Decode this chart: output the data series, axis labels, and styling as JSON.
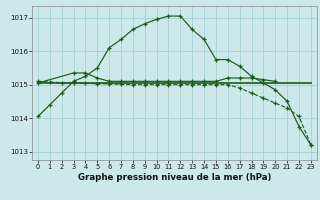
{
  "title": "Graphe pression niveau de la mer (hPa)",
  "bg_color": "#cce8e8",
  "grid_color": "#aad4d4",
  "line_color": "#1a5c1a",
  "xlim": [
    -0.5,
    23.5
  ],
  "ylim": [
    1012.75,
    1017.35
  ],
  "yticks": [
    1013,
    1014,
    1015,
    1016,
    1017
  ],
  "xticks": [
    0,
    1,
    2,
    3,
    4,
    5,
    6,
    7,
    8,
    9,
    10,
    11,
    12,
    13,
    14,
    15,
    16,
    17,
    18,
    19,
    20,
    21,
    22,
    23
  ],
  "line1_x": [
    0,
    1,
    2,
    3,
    4,
    5,
    6,
    7,
    8,
    9,
    10,
    11,
    12,
    13,
    14,
    15,
    16,
    17,
    18,
    19,
    20,
    21,
    22,
    23
  ],
  "line1_y": [
    1014.05,
    1014.4,
    1014.75,
    1015.1,
    1015.25,
    1015.5,
    1016.1,
    1016.35,
    1016.65,
    1016.82,
    1016.95,
    1017.05,
    1017.05,
    1016.65,
    1016.35,
    1015.75,
    1015.75,
    1015.55,
    1015.25,
    1015.05,
    1014.85,
    1014.5,
    1013.75,
    1013.2
  ],
  "line2_x": [
    0,
    1,
    2,
    3,
    4,
    5,
    6,
    7,
    8,
    9,
    10,
    11,
    12,
    13,
    14,
    15,
    16,
    17,
    18,
    19,
    20,
    21,
    22,
    23
  ],
  "line2_y": [
    1015.05,
    1015.05,
    1015.05,
    1015.05,
    1015.05,
    1015.05,
    1015.05,
    1015.05,
    1015.05,
    1015.05,
    1015.05,
    1015.05,
    1015.05,
    1015.05,
    1015.05,
    1015.05,
    1015.05,
    1015.05,
    1015.05,
    1015.05,
    1015.05,
    1015.05,
    1015.05,
    1015.05
  ],
  "line3_x": [
    0,
    3,
    4,
    5,
    6,
    7,
    8,
    9,
    10,
    11,
    12,
    13,
    14,
    15,
    16,
    17,
    18,
    19,
    20
  ],
  "line3_y": [
    1015.05,
    1015.35,
    1015.35,
    1015.2,
    1015.1,
    1015.1,
    1015.1,
    1015.1,
    1015.1,
    1015.1,
    1015.1,
    1015.1,
    1015.1,
    1015.1,
    1015.2,
    1015.2,
    1015.2,
    1015.15,
    1015.1
  ],
  "line4_x": [
    0,
    1,
    2,
    3,
    4,
    5,
    6,
    7,
    8,
    9,
    10,
    11,
    12,
    13,
    14,
    15,
    16,
    17,
    18,
    19,
    20,
    21,
    22,
    23
  ],
  "line4_y": [
    1015.1,
    1015.08,
    1015.06,
    1015.05,
    1015.04,
    1015.03,
    1015.02,
    1015.01,
    1015.0,
    1015.0,
    1015.0,
    1015.0,
    1015.0,
    1015.0,
    1015.0,
    1015.0,
    1015.0,
    1014.9,
    1014.75,
    1014.6,
    1014.45,
    1014.3,
    1014.05,
    1013.2
  ]
}
